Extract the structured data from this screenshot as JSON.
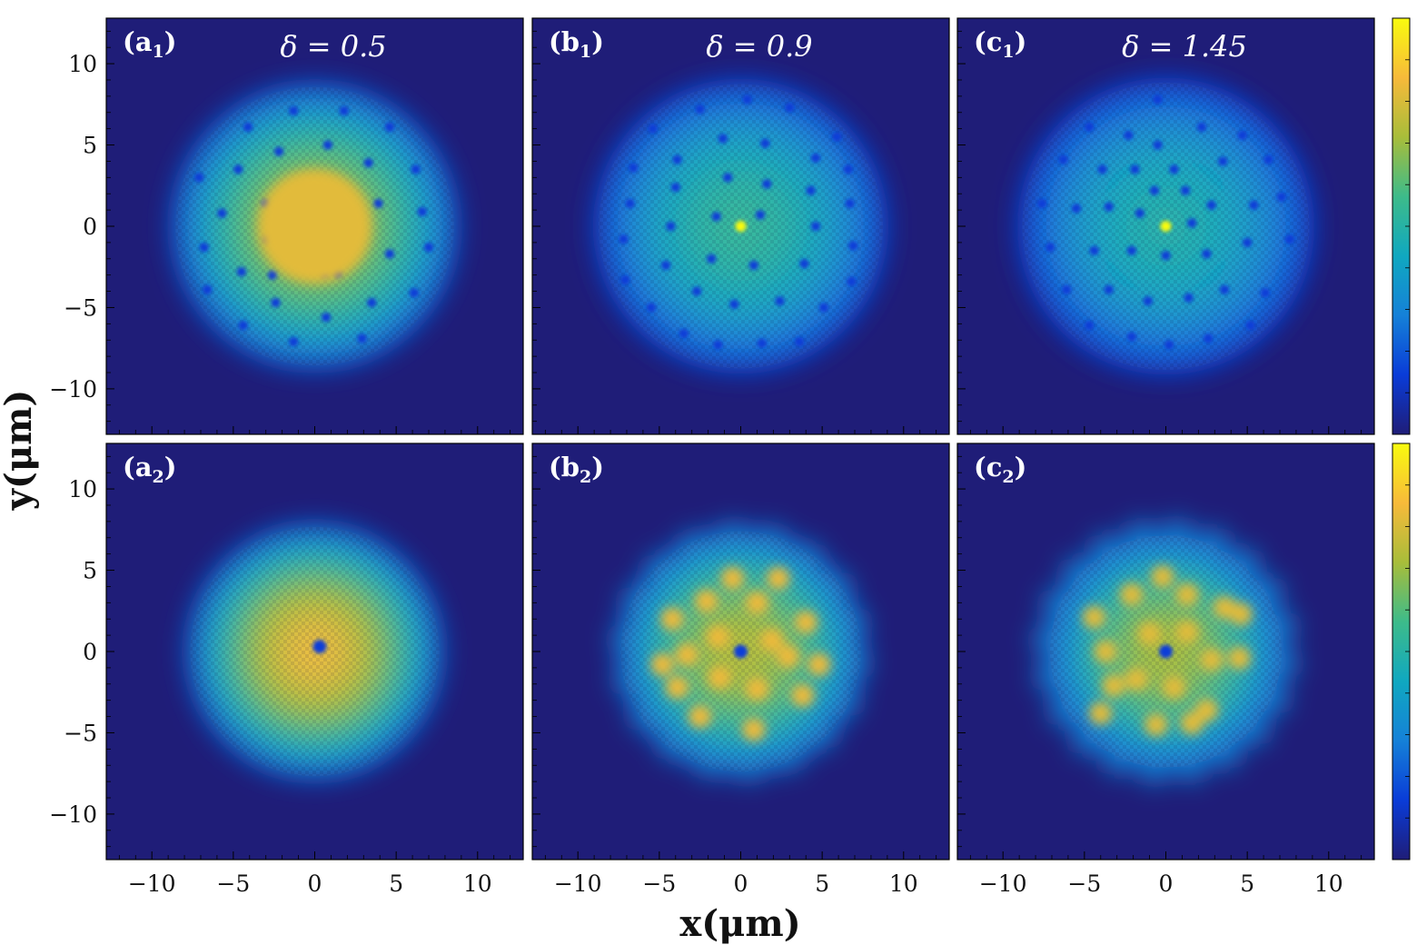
{
  "chart_data": {
    "type": "heatmap",
    "layout": "2x3 grid with two colorbars",
    "colormap": "parula",
    "colormap_colors": [
      "#1f1d78",
      "#0a3cd8",
      "#1581d8",
      "#10a8c0",
      "#3dbb8a",
      "#a8bd3a",
      "#f7ba3a",
      "#f9fb0e"
    ],
    "background_color": "#1f1d78",
    "xlabel": "x(μm)",
    "ylabel": "y(μm)",
    "xlim": [
      -12.8,
      12.8
    ],
    "ylim": [
      -12.8,
      12.8
    ],
    "x_ticks": [
      {
        "value": -10,
        "label": "−10"
      },
      {
        "value": -5,
        "label": "−5"
      },
      {
        "value": 0,
        "label": "0"
      },
      {
        "value": 5,
        "label": "5"
      },
      {
        "value": 10,
        "label": "10"
      }
    ],
    "y_ticks": [
      {
        "value": 10,
        "label": "10"
      },
      {
        "value": 5,
        "label": "5"
      },
      {
        "value": 0,
        "label": "0"
      },
      {
        "value": -5,
        "label": "−5"
      },
      {
        "value": -10,
        "label": "−10"
      }
    ],
    "colorbars": [
      "top row",
      "bottom row"
    ],
    "panels": [
      {
        "label_letter": "a",
        "label_index": "1",
        "delta": "δ = 0.5",
        "cloud_radius": 9.5,
        "peak_level": 0.72,
        "core": "bright",
        "vortices": [
          [
            -1.3,
            7.1
          ],
          [
            1.8,
            7.1
          ],
          [
            -4.1,
            6.1
          ],
          [
            4.6,
            6.1
          ],
          [
            -2.2,
            4.6
          ],
          [
            0.8,
            5.0
          ],
          [
            3.3,
            3.9
          ],
          [
            -7.1,
            3.0
          ],
          [
            -4.7,
            3.5
          ],
          [
            6.2,
            3.5
          ],
          [
            -3.0,
            1.4
          ],
          [
            -0.8,
            2.3
          ],
          [
            1.4,
            1.8
          ],
          [
            3.9,
            1.4
          ],
          [
            -5.7,
            0.8
          ],
          [
            6.6,
            0.9
          ],
          [
            -0.4,
            -0.3
          ],
          [
            -2.9,
            -0.8
          ],
          [
            1.6,
            -0.7
          ],
          [
            4.6,
            -1.7
          ],
          [
            7.0,
            -1.3
          ],
          [
            -6.8,
            -1.3
          ],
          [
            -4.5,
            -2.8
          ],
          [
            -2.6,
            -3.0
          ],
          [
            0.6,
            -2.9
          ],
          [
            1.4,
            -2.9
          ],
          [
            3.5,
            -4.7
          ],
          [
            -2.4,
            -4.7
          ],
          [
            6.1,
            -4.1
          ],
          [
            -6.6,
            -3.9
          ],
          [
            0.7,
            -5.6
          ],
          [
            -4.4,
            -6.1
          ],
          [
            -1.3,
            -7.1
          ],
          [
            2.9,
            -6.9
          ]
        ]
      },
      {
        "label_letter": "b",
        "label_index": "1",
        "delta": "δ = 0.9",
        "cloud_radius": 9.7,
        "peak_level": 0.5,
        "core": "sparkle",
        "vortices": [
          [
            0.4,
            7.8
          ],
          [
            -2.5,
            7.2
          ],
          [
            3.0,
            7.3
          ],
          [
            -5.4,
            6.0
          ],
          [
            5.9,
            5.5
          ],
          [
            -1.1,
            5.4
          ],
          [
            1.5,
            5.1
          ],
          [
            -3.9,
            4.1
          ],
          [
            4.6,
            4.2
          ],
          [
            -6.6,
            3.6
          ],
          [
            6.6,
            3.5
          ],
          [
            -0.8,
            3.0
          ],
          [
            1.6,
            2.6
          ],
          [
            -4.0,
            2.4
          ],
          [
            4.3,
            2.2
          ],
          [
            -6.8,
            1.4
          ],
          [
            6.7,
            1.4
          ],
          [
            -1.5,
            0.6
          ],
          [
            1.2,
            0.7
          ],
          [
            -4.3,
            0.0
          ],
          [
            4.6,
            0.0
          ],
          [
            -7.2,
            -0.8
          ],
          [
            6.9,
            -1.2
          ],
          [
            -1.8,
            -2.0
          ],
          [
            0.8,
            -2.4
          ],
          [
            -4.6,
            -2.4
          ],
          [
            3.9,
            -2.3
          ],
          [
            -7.1,
            -3.3
          ],
          [
            6.8,
            -3.4
          ],
          [
            -2.7,
            -4.0
          ],
          [
            -0.4,
            -4.8
          ],
          [
            2.4,
            -4.6
          ],
          [
            -5.5,
            -5.0
          ],
          [
            5.1,
            -5.0
          ],
          [
            -3.5,
            -6.6
          ],
          [
            -1.4,
            -7.3
          ],
          [
            1.3,
            -7.2
          ],
          [
            3.6,
            -7.1
          ]
        ]
      },
      {
        "label_letter": "c",
        "label_index": "1",
        "delta": "δ = 1.45",
        "cloud_radius": 9.8,
        "peak_level": 0.45,
        "core": "sparkle",
        "vortices": [
          [
            -0.5,
            7.8
          ],
          [
            -4.7,
            6.1
          ],
          [
            -2.3,
            5.6
          ],
          [
            2.2,
            6.1
          ],
          [
            4.7,
            5.6
          ],
          [
            -0.5,
            5.0
          ],
          [
            -6.3,
            4.1
          ],
          [
            -3.9,
            3.5
          ],
          [
            -1.9,
            3.5
          ],
          [
            0.5,
            3.5
          ],
          [
            3.5,
            4.0
          ],
          [
            6.3,
            4.1
          ],
          [
            -0.7,
            2.2
          ],
          [
            1.2,
            2.2
          ],
          [
            -7.6,
            1.4
          ],
          [
            -5.5,
            1.1
          ],
          [
            -3.5,
            1.2
          ],
          [
            2.8,
            1.3
          ],
          [
            5.4,
            1.3
          ],
          [
            7.1,
            1.8
          ],
          [
            -1.6,
            0.8
          ],
          [
            1.6,
            0.2
          ],
          [
            -7.1,
            -1.3
          ],
          [
            -4.4,
            -1.5
          ],
          [
            -2.1,
            -1.5
          ],
          [
            0.0,
            -1.8
          ],
          [
            2.5,
            -1.7
          ],
          [
            5.0,
            -1.0
          ],
          [
            7.6,
            -0.8
          ],
          [
            -6.1,
            -3.9
          ],
          [
            -3.5,
            -3.9
          ],
          [
            -1.1,
            -4.6
          ],
          [
            1.4,
            -4.4
          ],
          [
            3.6,
            -3.9
          ],
          [
            6.1,
            -4.1
          ],
          [
            -4.7,
            -6.1
          ],
          [
            -2.1,
            -6.8
          ],
          [
            0.2,
            -7.3
          ],
          [
            2.6,
            -6.9
          ],
          [
            5.2,
            -6.1
          ]
        ]
      },
      {
        "label_letter": "a",
        "label_index": "2",
        "delta": "",
        "cloud_radius": 8.5,
        "peak_level": 0.82,
        "core": "vortex",
        "peaks": [],
        "edge_bumps": 0
      },
      {
        "label_letter": "b",
        "label_index": "2",
        "delta": "",
        "cloud_radius": 8.2,
        "peak_level": 0.72,
        "core": "vortex",
        "peaks": [
          [
            -1.4,
            0.9
          ],
          [
            1.9,
            0.7
          ],
          [
            -1.3,
            -1.6
          ],
          [
            1.0,
            -2.3
          ],
          [
            1.0,
            3.0
          ],
          [
            -2.1,
            3.1
          ],
          [
            2.9,
            -0.3
          ],
          [
            -3.3,
            -0.2
          ],
          [
            -4.2,
            2.0
          ],
          [
            4.0,
            1.8
          ],
          [
            -3.9,
            -2.2
          ],
          [
            3.8,
            -2.7
          ],
          [
            -0.5,
            4.5
          ],
          [
            2.3,
            4.5
          ],
          [
            -2.5,
            -4.0
          ],
          [
            0.8,
            -4.8
          ],
          [
            -4.8,
            -0.8
          ],
          [
            4.8,
            -0.8
          ]
        ],
        "edge_bumps": 18,
        "edge_bump_radius": 7.1
      },
      {
        "label_letter": "c",
        "label_index": "2",
        "delta": "",
        "cloud_radius": 7.9,
        "peak_level": 0.7,
        "core": "vortex",
        "peaks": [
          [
            -1.0,
            1.1
          ],
          [
            1.3,
            1.2
          ],
          [
            -1.8,
            -1.7
          ],
          [
            0.5,
            -2.2
          ],
          [
            2.8,
            -0.5
          ],
          [
            -3.7,
            0.0
          ],
          [
            -2.1,
            3.5
          ],
          [
            1.3,
            3.5
          ],
          [
            3.6,
            2.7
          ],
          [
            -3.2,
            -2.1
          ],
          [
            2.5,
            -3.6
          ],
          [
            -0.6,
            -4.5
          ],
          [
            4.5,
            -0.4
          ],
          [
            -4.4,
            2.1
          ],
          [
            -4.0,
            -3.8
          ],
          [
            1.6,
            -4.4
          ],
          [
            -0.2,
            4.6
          ],
          [
            4.6,
            2.3
          ]
        ],
        "edge_bumps": 20,
        "edge_bump_radius": 7.3
      }
    ]
  }
}
